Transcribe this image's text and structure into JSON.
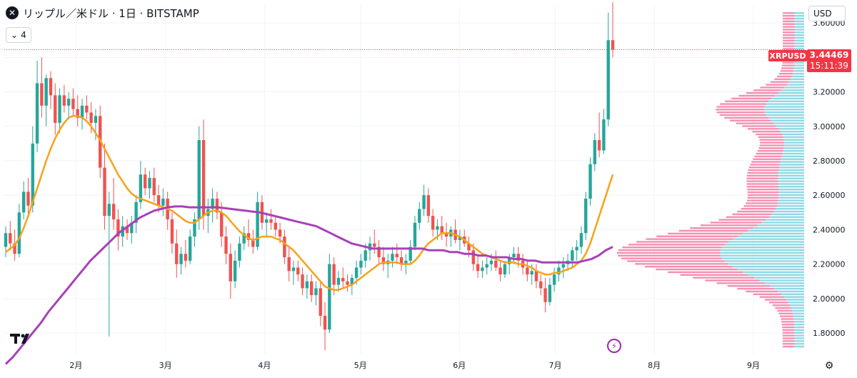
{
  "header": {
    "title": "リップル／米ドル · 1日 · BITSTAMP",
    "symbol_icon": "x-mark-icon",
    "indicators_collapse_label": "4",
    "currency": "USD"
  },
  "price_tag": {
    "symbol": "XRPUSD",
    "price": "3.44469",
    "countdown": "15:11:39",
    "color": "#f23645"
  },
  "chart_data": {
    "type": "candlestick",
    "ylim": [
      1.68,
      3.7
    ],
    "y_ticks": [
      1.8,
      2.0,
      2.2,
      2.4,
      2.6,
      2.8,
      3.0,
      3.2,
      3.4,
      3.6
    ],
    "y_tick_labels": [
      "1.80000",
      "2.00000",
      "2.20000",
      "2.40000",
      "2.60000",
      "2.80000",
      "3.00000",
      "3.20000",
      "3.60000"
    ],
    "x_ticks": [
      "2月",
      "3月",
      "4月",
      "5月",
      "6月",
      "7月",
      "8月",
      "9月"
    ],
    "candles_range": {
      "start": 0,
      "end": 191
    },
    "x_tick_days": [
      22,
      50,
      81,
      111,
      142,
      172,
      203,
      234
    ],
    "up_color": "#26a69a",
    "down_color": "#ef5350",
    "candles": [
      [
        2.3,
        2.42,
        2.24,
        2.38
      ],
      [
        2.38,
        2.45,
        2.28,
        2.32
      ],
      [
        2.32,
        2.4,
        2.22,
        2.26
      ],
      [
        2.26,
        2.55,
        2.24,
        2.5
      ],
      [
        2.5,
        2.68,
        2.46,
        2.62
      ],
      [
        2.62,
        2.7,
        2.48,
        2.54
      ],
      [
        2.54,
        3.0,
        2.5,
        2.9
      ],
      [
        2.9,
        3.38,
        2.85,
        3.25
      ],
      [
        3.25,
        3.4,
        3.05,
        3.12
      ],
      [
        3.12,
        3.3,
        3.0,
        3.28
      ],
      [
        3.28,
        3.32,
        3.1,
        3.18
      ],
      [
        3.18,
        3.25,
        2.95,
        3.02
      ],
      [
        3.02,
        3.22,
        2.96,
        3.18
      ],
      [
        3.18,
        3.24,
        3.08,
        3.12
      ],
      [
        3.12,
        3.2,
        3.04,
        3.16
      ],
      [
        3.16,
        3.22,
        3.06,
        3.1
      ],
      [
        3.1,
        3.18,
        3.0,
        3.05
      ],
      [
        3.05,
        3.16,
        2.98,
        3.12
      ],
      [
        3.12,
        3.18,
        3.04,
        3.08
      ],
      [
        3.08,
        3.14,
        2.96,
        3.02
      ],
      [
        3.02,
        3.1,
        2.92,
        3.06
      ],
      [
        3.06,
        3.12,
        2.7,
        2.76
      ],
      [
        2.76,
        2.9,
        2.4,
        2.48
      ],
      [
        2.48,
        2.62,
        1.78,
        2.55
      ],
      [
        2.55,
        2.7,
        2.4,
        2.46
      ],
      [
        2.46,
        2.52,
        2.28,
        2.36
      ],
      [
        2.36,
        2.48,
        2.3,
        2.42
      ],
      [
        2.42,
        2.46,
        2.34,
        2.38
      ],
      [
        2.38,
        2.48,
        2.32,
        2.44
      ],
      [
        2.44,
        2.6,
        2.38,
        2.56
      ],
      [
        2.56,
        2.8,
        2.52,
        2.72
      ],
      [
        2.72,
        2.76,
        2.6,
        2.64
      ],
      [
        2.64,
        2.74,
        2.58,
        2.7
      ],
      [
        2.7,
        2.76,
        2.56,
        2.6
      ],
      [
        2.6,
        2.66,
        2.5,
        2.54
      ],
      [
        2.54,
        2.64,
        2.48,
        2.58
      ],
      [
        2.58,
        2.62,
        2.4,
        2.46
      ],
      [
        2.46,
        2.5,
        2.26,
        2.32
      ],
      [
        2.32,
        2.4,
        2.12,
        2.2
      ],
      [
        2.2,
        2.3,
        2.14,
        2.26
      ],
      [
        2.26,
        2.34,
        2.18,
        2.22
      ],
      [
        2.22,
        2.4,
        2.2,
        2.36
      ],
      [
        2.36,
        2.5,
        2.3,
        2.46
      ],
      [
        2.46,
        3.0,
        2.4,
        2.92
      ],
      [
        2.92,
        3.04,
        2.4,
        2.48
      ],
      [
        2.48,
        2.58,
        2.38,
        2.52
      ],
      [
        2.52,
        2.64,
        2.44,
        2.58
      ],
      [
        2.58,
        2.62,
        2.46,
        2.5
      ],
      [
        2.5,
        2.56,
        2.3,
        2.36
      ],
      [
        2.36,
        2.42,
        2.2,
        2.26
      ],
      [
        2.26,
        2.32,
        2.0,
        2.1
      ],
      [
        2.1,
        2.28,
        2.06,
        2.22
      ],
      [
        2.22,
        2.36,
        2.18,
        2.32
      ],
      [
        2.32,
        2.42,
        2.28,
        2.38
      ],
      [
        2.38,
        2.46,
        2.3,
        2.34
      ],
      [
        2.34,
        2.4,
        2.26,
        2.3
      ],
      [
        2.3,
        2.62,
        2.28,
        2.56
      ],
      [
        2.56,
        2.6,
        2.4,
        2.44
      ],
      [
        2.44,
        2.5,
        2.36,
        2.46
      ],
      [
        2.46,
        2.52,
        2.4,
        2.44
      ],
      [
        2.44,
        2.48,
        2.36,
        2.4
      ],
      [
        2.4,
        2.44,
        2.32,
        2.36
      ],
      [
        2.36,
        2.4,
        2.2,
        2.24
      ],
      [
        2.24,
        2.3,
        2.1,
        2.16
      ],
      [
        2.16,
        2.22,
        2.08,
        2.18
      ],
      [
        2.18,
        2.22,
        2.1,
        2.14
      ],
      [
        2.14,
        2.18,
        2.02,
        2.06
      ],
      [
        2.06,
        2.14,
        2.0,
        2.1
      ],
      [
        2.1,
        2.14,
        1.98,
        2.02
      ],
      [
        2.02,
        2.1,
        1.96,
        2.06
      ],
      [
        2.06,
        2.1,
        1.84,
        1.9
      ],
      [
        1.9,
        1.98,
        1.7,
        1.82
      ],
      [
        1.82,
        2.26,
        1.8,
        2.2
      ],
      [
        2.2,
        2.24,
        2.02,
        2.08
      ],
      [
        2.08,
        2.16,
        2.04,
        2.12
      ],
      [
        2.12,
        2.18,
        2.06,
        2.1
      ],
      [
        2.1,
        2.14,
        2.04,
        2.08
      ],
      [
        2.08,
        2.14,
        2.02,
        2.12
      ],
      [
        2.12,
        2.22,
        2.08,
        2.18
      ],
      [
        2.18,
        2.26,
        2.14,
        2.22
      ],
      [
        2.22,
        2.32,
        2.18,
        2.28
      ],
      [
        2.28,
        2.36,
        2.22,
        2.32
      ],
      [
        2.32,
        2.4,
        2.26,
        2.3
      ],
      [
        2.3,
        2.34,
        2.2,
        2.24
      ],
      [
        2.24,
        2.3,
        2.16,
        2.2
      ],
      [
        2.2,
        2.26,
        2.12,
        2.22
      ],
      [
        2.22,
        2.3,
        2.18,
        2.26
      ],
      [
        2.26,
        2.32,
        2.2,
        2.24
      ],
      [
        2.24,
        2.28,
        2.16,
        2.2
      ],
      [
        2.2,
        2.26,
        2.14,
        2.22
      ],
      [
        2.22,
        2.34,
        2.2,
        2.3
      ],
      [
        2.3,
        2.48,
        2.28,
        2.44
      ],
      [
        2.44,
        2.56,
        2.4,
        2.52
      ],
      [
        2.52,
        2.66,
        2.48,
        2.6
      ],
      [
        2.6,
        2.64,
        2.44,
        2.48
      ],
      [
        2.48,
        2.52,
        2.36,
        2.4
      ],
      [
        2.4,
        2.46,
        2.34,
        2.42
      ],
      [
        2.42,
        2.48,
        2.34,
        2.38
      ],
      [
        2.38,
        2.44,
        2.3,
        2.36
      ],
      [
        2.36,
        2.42,
        2.3,
        2.4
      ],
      [
        2.4,
        2.46,
        2.32,
        2.34
      ],
      [
        2.34,
        2.4,
        2.28,
        2.36
      ],
      [
        2.36,
        2.4,
        2.3,
        2.32
      ],
      [
        2.32,
        2.36,
        2.24,
        2.28
      ],
      [
        2.28,
        2.32,
        2.16,
        2.2
      ],
      [
        2.2,
        2.26,
        2.12,
        2.16
      ],
      [
        2.16,
        2.22,
        2.12,
        2.18
      ],
      [
        2.18,
        2.24,
        2.14,
        2.2
      ],
      [
        2.2,
        2.26,
        2.16,
        2.22
      ],
      [
        2.22,
        2.28,
        2.16,
        2.18
      ],
      [
        2.18,
        2.22,
        2.1,
        2.14
      ],
      [
        2.14,
        2.22,
        2.12,
        2.2
      ],
      [
        2.2,
        2.26,
        2.14,
        2.24
      ],
      [
        2.24,
        2.3,
        2.2,
        2.26
      ],
      [
        2.26,
        2.3,
        2.18,
        2.22
      ],
      [
        2.22,
        2.26,
        2.14,
        2.18
      ],
      [
        2.18,
        2.22,
        2.1,
        2.14
      ],
      [
        2.14,
        2.2,
        2.08,
        2.16
      ],
      [
        2.16,
        2.2,
        2.06,
        2.1
      ],
      [
        2.1,
        2.14,
        2.02,
        2.06
      ],
      [
        2.06,
        2.12,
        1.92,
        1.98
      ],
      [
        1.98,
        2.12,
        1.96,
        2.08
      ],
      [
        2.08,
        2.18,
        2.04,
        2.14
      ],
      [
        2.14,
        2.22,
        2.1,
        2.18
      ],
      [
        2.18,
        2.24,
        2.12,
        2.2
      ],
      [
        2.2,
        2.26,
        2.16,
        2.22
      ],
      [
        2.22,
        2.3,
        2.18,
        2.28
      ],
      [
        2.28,
        2.34,
        2.22,
        2.3
      ],
      [
        2.3,
        2.42,
        2.26,
        2.38
      ],
      [
        2.38,
        2.62,
        2.34,
        2.58
      ],
      [
        2.58,
        2.82,
        2.54,
        2.78
      ],
      [
        2.78,
        2.96,
        2.74,
        2.92
      ],
      [
        2.92,
        3.08,
        2.82,
        2.86
      ],
      [
        2.86,
        3.1,
        2.84,
        3.04
      ],
      [
        3.04,
        3.66,
        3.0,
        3.5
      ],
      [
        3.5,
        3.72,
        3.4,
        3.44469
      ]
    ],
    "ma_fast": {
      "color": "#f7a21b",
      "values": [
        2.27,
        2.29,
        2.31,
        2.35,
        2.41,
        2.48,
        2.56,
        2.64,
        2.72,
        2.8,
        2.87,
        2.93,
        2.98,
        3.02,
        3.05,
        3.06,
        3.06,
        3.05,
        3.03,
        3.0,
        2.96,
        2.92,
        2.87,
        2.82,
        2.77,
        2.72,
        2.68,
        2.64,
        2.61,
        2.59,
        2.58,
        2.57,
        2.56,
        2.55,
        2.54,
        2.53,
        2.52,
        2.51,
        2.49,
        2.47,
        2.45,
        2.44,
        2.44,
        2.46,
        2.48,
        2.5,
        2.51,
        2.51,
        2.5,
        2.48,
        2.45,
        2.42,
        2.39,
        2.37,
        2.35,
        2.34,
        2.35,
        2.36,
        2.36,
        2.36,
        2.35,
        2.34,
        2.32,
        2.3,
        2.28,
        2.25,
        2.22,
        2.19,
        2.16,
        2.13,
        2.1,
        2.07,
        2.06,
        2.05,
        2.05,
        2.06,
        2.07,
        2.08,
        2.1,
        2.12,
        2.14,
        2.16,
        2.18,
        2.2,
        2.21,
        2.21,
        2.21,
        2.21,
        2.2,
        2.2,
        2.2,
        2.22,
        2.25,
        2.29,
        2.32,
        2.34,
        2.36,
        2.38,
        2.38,
        2.38,
        2.37,
        2.36,
        2.34,
        2.32,
        2.3,
        2.28,
        2.26,
        2.25,
        2.24,
        2.23,
        2.22,
        2.21,
        2.21,
        2.21,
        2.2,
        2.2,
        2.19,
        2.18,
        2.16,
        2.15,
        2.14,
        2.14,
        2.15,
        2.15,
        2.16,
        2.17,
        2.18,
        2.2,
        2.22,
        2.26,
        2.32,
        2.4,
        2.48,
        2.56,
        2.64,
        2.72
      ]
    },
    "ma_slow": {
      "color": "#a741b8",
      "values": [
        1.62,
        1.66,
        1.71,
        1.76,
        1.81,
        1.86,
        1.92,
        1.97,
        2.02,
        2.07,
        2.12,
        2.17,
        2.22,
        2.26,
        2.3,
        2.34,
        2.38,
        2.41,
        2.44,
        2.47,
        2.49,
        2.51,
        2.52,
        2.53,
        2.535,
        2.535,
        2.53,
        2.53,
        2.53,
        2.53,
        2.53,
        2.525,
        2.52,
        2.515,
        2.51,
        2.505,
        2.5,
        2.49,
        2.48,
        2.47,
        2.46,
        2.45,
        2.44,
        2.43,
        2.42,
        2.4,
        2.38,
        2.36,
        2.34,
        2.32,
        2.31,
        2.3,
        2.29,
        2.29,
        2.29,
        2.29,
        2.29,
        2.29,
        2.29,
        2.29,
        2.28,
        2.28,
        2.28,
        2.27,
        2.27,
        2.26,
        2.26,
        2.25,
        2.25,
        2.24,
        2.24,
        2.24,
        2.23,
        2.23,
        2.22,
        2.22,
        2.21,
        2.21,
        2.21,
        2.21,
        2.21,
        2.21,
        2.22,
        2.23,
        2.25,
        2.28,
        2.3
      ]
    },
    "last_price": 3.44469,
    "last_price_line_color": "#f23645",
    "volume_profile_color_up": "#8fd8e4",
    "volume_profile_color_down": "#f48fb1"
  },
  "logo": {
    "name": "tradingview-logo-icon"
  },
  "footer": {
    "lightning": "⚡",
    "gear": "⚙"
  }
}
